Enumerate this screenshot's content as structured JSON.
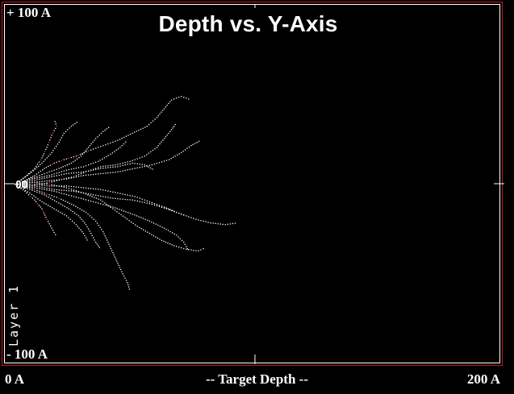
{
  "title": "Depth vs. Y-Axis",
  "y_axis": {
    "top_label": "+ 100 A",
    "bottom_label": "- 100 A"
  },
  "x_axis": {
    "left_label": "0 A",
    "center_label": "-- Target Depth --",
    "right_label": "200 A"
  },
  "layer_label": "Layer 1",
  "origin_label": "00",
  "colors": {
    "background": "#000000",
    "frame": "#c0151f",
    "inner_frame": "#ffffff",
    "points": "#ffffff",
    "accent_points": "#ff3030"
  },
  "chart_data": {
    "type": "scatter",
    "xlim": [
      0,
      200
    ],
    "ylim": [
      -100,
      100
    ],
    "grid": false,
    "tracks": [
      [
        [
          2,
          0
        ],
        [
          6,
          2
        ],
        [
          10,
          5
        ],
        [
          14,
          9
        ],
        [
          18,
          12
        ],
        [
          22,
          14
        ],
        [
          27,
          16
        ],
        [
          32,
          19
        ],
        [
          38,
          22
        ],
        [
          44,
          25
        ],
        [
          50,
          29
        ],
        [
          56,
          33
        ],
        [
          60,
          38
        ],
        [
          63,
          43
        ],
        [
          66,
          48
        ],
        [
          70,
          50
        ],
        [
          74,
          48
        ]
      ],
      [
        [
          2,
          0
        ],
        [
          6,
          4
        ],
        [
          10,
          9
        ],
        [
          13,
          15
        ],
        [
          15,
          21
        ],
        [
          17,
          28
        ],
        [
          19,
          33
        ],
        [
          18,
          37
        ]
      ],
      [
        [
          2,
          0
        ],
        [
          7,
          -1
        ],
        [
          13,
          0
        ],
        [
          19,
          2
        ],
        [
          25,
          4
        ],
        [
          31,
          7
        ],
        [
          37,
          10
        ],
        [
          43,
          11
        ],
        [
          49,
          13
        ],
        [
          55,
          16
        ],
        [
          60,
          21
        ],
        [
          63,
          26
        ],
        [
          66,
          31
        ],
        [
          68,
          35
        ]
      ],
      [
        [
          2,
          0
        ],
        [
          6,
          -4
        ],
        [
          10,
          -9
        ],
        [
          13,
          -14
        ],
        [
          15,
          -20
        ],
        [
          17,
          -25
        ],
        [
          19,
          -30
        ]
      ],
      [
        [
          2,
          0
        ],
        [
          8,
          -2
        ],
        [
          14,
          -5
        ],
        [
          20,
          -8
        ],
        [
          26,
          -12
        ],
        [
          31,
          -16
        ],
        [
          35,
          -21
        ],
        [
          38,
          -27
        ],
        [
          40,
          -33
        ],
        [
          42,
          -39
        ],
        [
          44,
          -45
        ],
        [
          46,
          -51
        ],
        [
          48,
          -56
        ],
        [
          49,
          -61
        ]
      ],
      [
        [
          2,
          0
        ],
        [
          9,
          1
        ],
        [
          16,
          0
        ],
        [
          23,
          -2
        ],
        [
          30,
          -5
        ],
        [
          37,
          -9
        ],
        [
          42,
          -14
        ],
        [
          47,
          -19
        ],
        [
          52,
          -24
        ],
        [
          57,
          -28
        ],
        [
          62,
          -32
        ],
        [
          67,
          -35
        ],
        [
          72,
          -37
        ],
        [
          77,
          -38
        ],
        [
          80,
          -36
        ]
      ],
      [
        [
          2,
          0
        ],
        [
          9,
          0
        ],
        [
          16,
          -1
        ],
        [
          23,
          -1
        ],
        [
          30,
          -2
        ],
        [
          37,
          -3
        ],
        [
          44,
          -5
        ],
        [
          51,
          -7
        ],
        [
          57,
          -10
        ],
        [
          63,
          -13
        ],
        [
          68,
          -16
        ],
        [
          72,
          -18
        ]
      ],
      [
        [
          2,
          0
        ],
        [
          9,
          2
        ],
        [
          16,
          4
        ],
        [
          23,
          6
        ],
        [
          30,
          7
        ],
        [
          37,
          9
        ],
        [
          44,
          10
        ],
        [
          50,
          12
        ],
        [
          55,
          11
        ],
        [
          59,
          8
        ]
      ],
      [
        [
          2,
          0
        ],
        [
          8,
          3
        ],
        [
          14,
          6
        ],
        [
          20,
          9
        ],
        [
          25,
          12
        ],
        [
          29,
          16
        ],
        [
          32,
          21
        ],
        [
          35,
          26
        ],
        [
          38,
          30
        ],
        [
          41,
          33
        ]
      ],
      [
        [
          2,
          0
        ],
        [
          8,
          -3
        ],
        [
          14,
          -6
        ],
        [
          19,
          -10
        ],
        [
          24,
          -14
        ],
        [
          28,
          -18
        ],
        [
          31,
          -23
        ],
        [
          33,
          -28
        ],
        [
          35,
          -33
        ],
        [
          37,
          -37
        ]
      ],
      [
        [
          2,
          0
        ],
        [
          9,
          1
        ],
        [
          16,
          2
        ],
        [
          23,
          3
        ],
        [
          30,
          5
        ],
        [
          37,
          6
        ],
        [
          44,
          7
        ],
        [
          51,
          9
        ],
        [
          58,
          11
        ],
        [
          65,
          14
        ],
        [
          70,
          18
        ],
        [
          74,
          22
        ],
        [
          78,
          25
        ]
      ],
      [
        [
          2,
          0
        ],
        [
          10,
          -2
        ],
        [
          18,
          -4
        ],
        [
          26,
          -7
        ],
        [
          34,
          -10
        ],
        [
          42,
          -13
        ],
        [
          50,
          -17
        ],
        [
          57,
          -21
        ],
        [
          63,
          -25
        ],
        [
          68,
          -29
        ],
        [
          71,
          -33
        ],
        [
          73,
          -38
        ]
      ],
      [
        [
          2,
          0
        ],
        [
          8,
          6
        ],
        [
          13,
          12
        ],
        [
          17,
          18
        ],
        [
          20,
          24
        ],
        [
          22,
          29
        ],
        [
          25,
          33
        ],
        [
          28,
          36
        ]
      ],
      [
        [
          2,
          0
        ],
        [
          10,
          -1
        ],
        [
          18,
          -3
        ],
        [
          26,
          -4
        ],
        [
          34,
          -6
        ],
        [
          42,
          -8
        ],
        [
          50,
          -9
        ],
        [
          57,
          -11
        ],
        [
          64,
          -14
        ],
        [
          70,
          -17
        ],
        [
          76,
          -20
        ],
        [
          82,
          -22
        ],
        [
          88,
          -23
        ],
        [
          93,
          -22
        ]
      ],
      [
        [
          2,
          0
        ],
        [
          9,
          3
        ],
        [
          16,
          5
        ],
        [
          23,
          8
        ],
        [
          30,
          10
        ],
        [
          36,
          13
        ],
        [
          41,
          17
        ],
        [
          45,
          21
        ],
        [
          48,
          25
        ]
      ],
      [
        [
          2,
          0
        ],
        [
          8,
          -5
        ],
        [
          13,
          -10
        ],
        [
          18,
          -14
        ],
        [
          23,
          -18
        ],
        [
          27,
          -23
        ],
        [
          30,
          -28
        ],
        [
          32,
          -33
        ]
      ]
    ]
  }
}
